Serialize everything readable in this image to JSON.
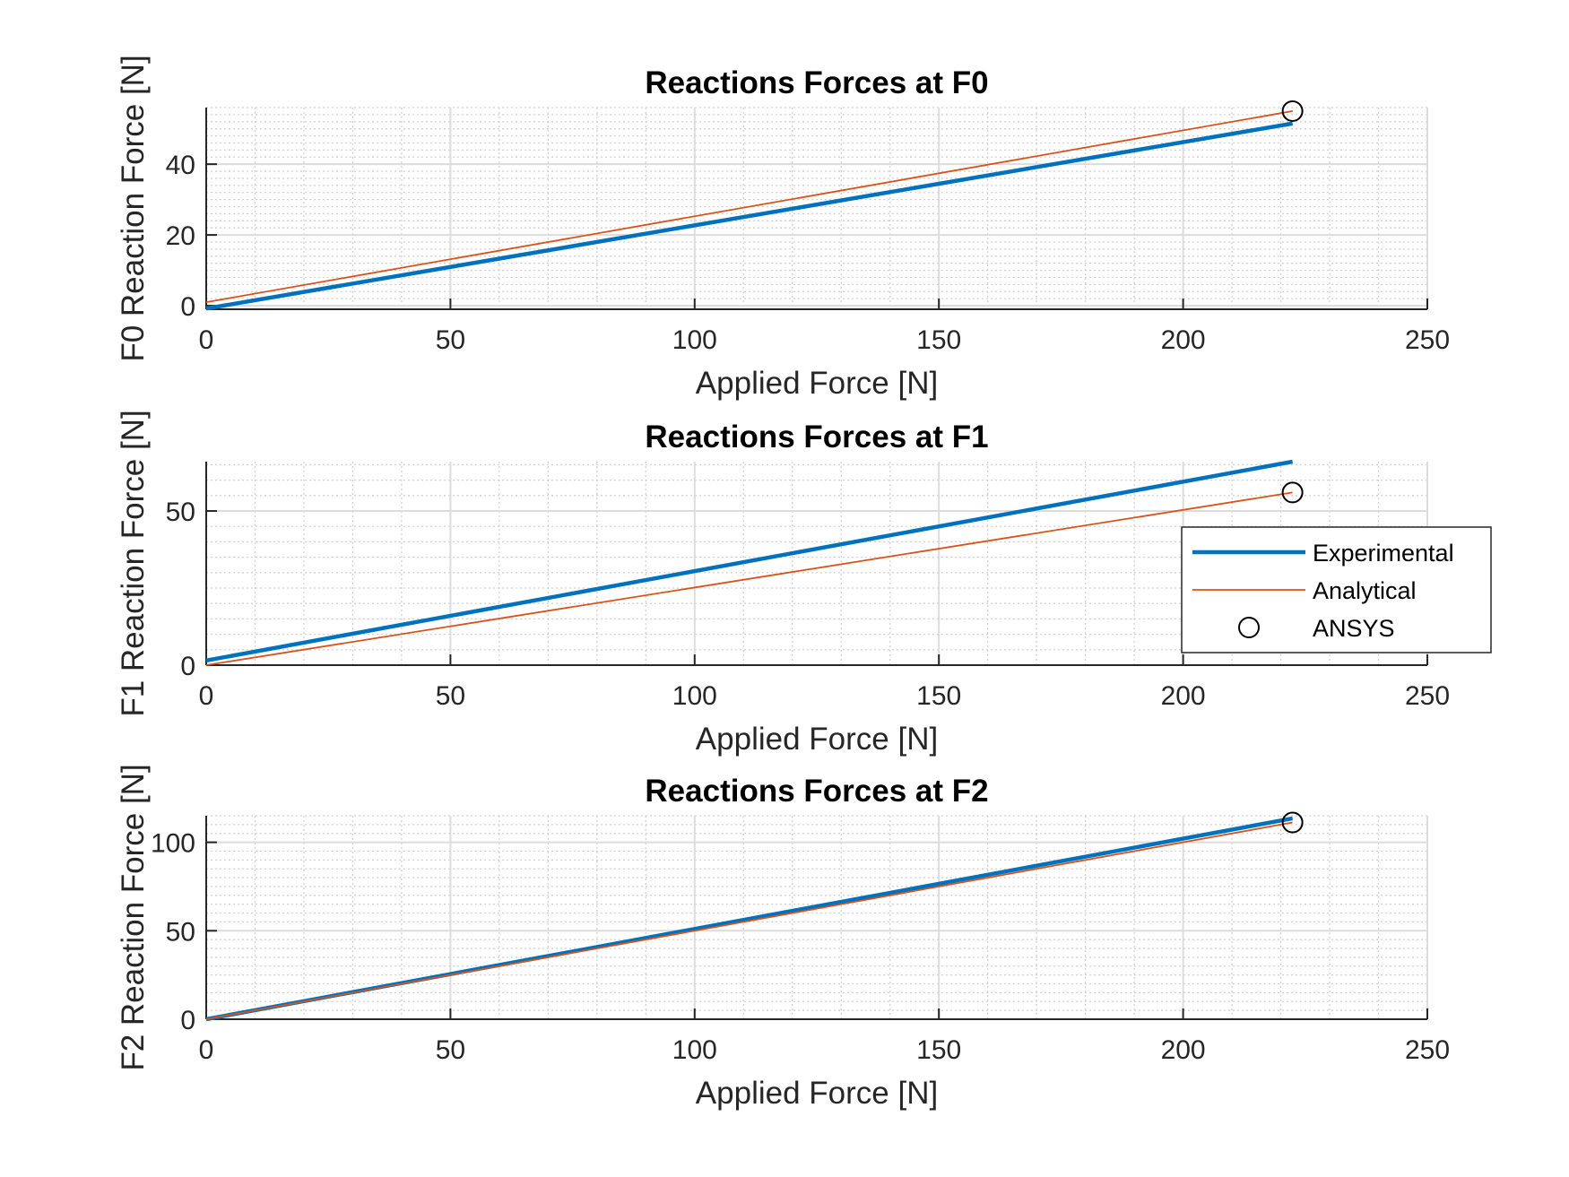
{
  "chart_data": [
    {
      "type": "line",
      "title": "Reactions Forces at F0",
      "xlabel": "Applied Force [N]",
      "ylabel": "F0 Reaction Force [N]",
      "xlim": [
        0,
        250
      ],
      "ylim": [
        -1,
        56
      ],
      "xticks": [
        0,
        50,
        100,
        150,
        200,
        250
      ],
      "yticks": [
        0,
        20,
        40
      ],
      "grid": true,
      "minor_grid": true,
      "series": [
        {
          "name": "Experimental",
          "x": [
            0,
            222.4
          ],
          "y": [
            -0.8,
            51.5
          ],
          "color": "#0072BD",
          "width": 4.5
        },
        {
          "name": "Analytical",
          "x": [
            0,
            222.4
          ],
          "y": [
            1.0,
            55.0
          ],
          "color": "#D95319",
          "width": 1.8
        }
      ],
      "markers": [
        {
          "name": "ANSYS",
          "x": [
            222.4
          ],
          "y": [
            55.0
          ],
          "symbol": "circle"
        }
      ]
    },
    {
      "type": "line",
      "title": "Reactions Forces at F1",
      "xlabel": "Applied Force [N]",
      "ylabel": "F1 Reaction Force [N]",
      "xlim": [
        0,
        250
      ],
      "ylim": [
        0,
        66
      ],
      "xticks": [
        0,
        50,
        100,
        150,
        200,
        250
      ],
      "yticks": [
        0,
        50
      ],
      "grid": true,
      "minor_grid": true,
      "legend": {
        "position": "right",
        "entries": [
          {
            "label": "Experimental",
            "style": "line-thick",
            "color": "#0072BD"
          },
          {
            "label": "Analytical",
            "style": "line-thin",
            "color": "#D95319"
          },
          {
            "label": "ANSYS",
            "style": "circle",
            "color": "#000000"
          }
        ]
      },
      "series": [
        {
          "name": "Experimental",
          "x": [
            0,
            222.4
          ],
          "y": [
            1.5,
            66.0
          ],
          "color": "#0072BD",
          "width": 4.5
        },
        {
          "name": "Analytical",
          "x": [
            0,
            222.4
          ],
          "y": [
            0.0,
            56.0
          ],
          "color": "#D95319",
          "width": 1.8
        }
      ],
      "markers": [
        {
          "name": "ANSYS",
          "x": [
            222.4
          ],
          "y": [
            56.0
          ],
          "symbol": "circle"
        }
      ]
    },
    {
      "type": "line",
      "title": "Reactions Forces at F2",
      "xlabel": "Applied Force [N]",
      "ylabel": "F2 Reaction Force [N]",
      "xlim": [
        0,
        250
      ],
      "ylim": [
        0,
        115
      ],
      "xticks": [
        0,
        50,
        100,
        150,
        200,
        250
      ],
      "yticks": [
        0,
        50,
        100
      ],
      "grid": true,
      "minor_grid": true,
      "series": [
        {
          "name": "Experimental",
          "x": [
            0,
            222.4
          ],
          "y": [
            0.0,
            113.5
          ],
          "color": "#0072BD",
          "width": 4.5
        },
        {
          "name": "Analytical",
          "x": [
            0,
            222.4
          ],
          "y": [
            0.0,
            111.2
          ],
          "color": "#D95319",
          "width": 1.8
        }
      ],
      "markers": [
        {
          "name": "ANSYS",
          "x": [
            222.4
          ],
          "y": [
            111.2
          ],
          "symbol": "circle"
        }
      ]
    }
  ]
}
